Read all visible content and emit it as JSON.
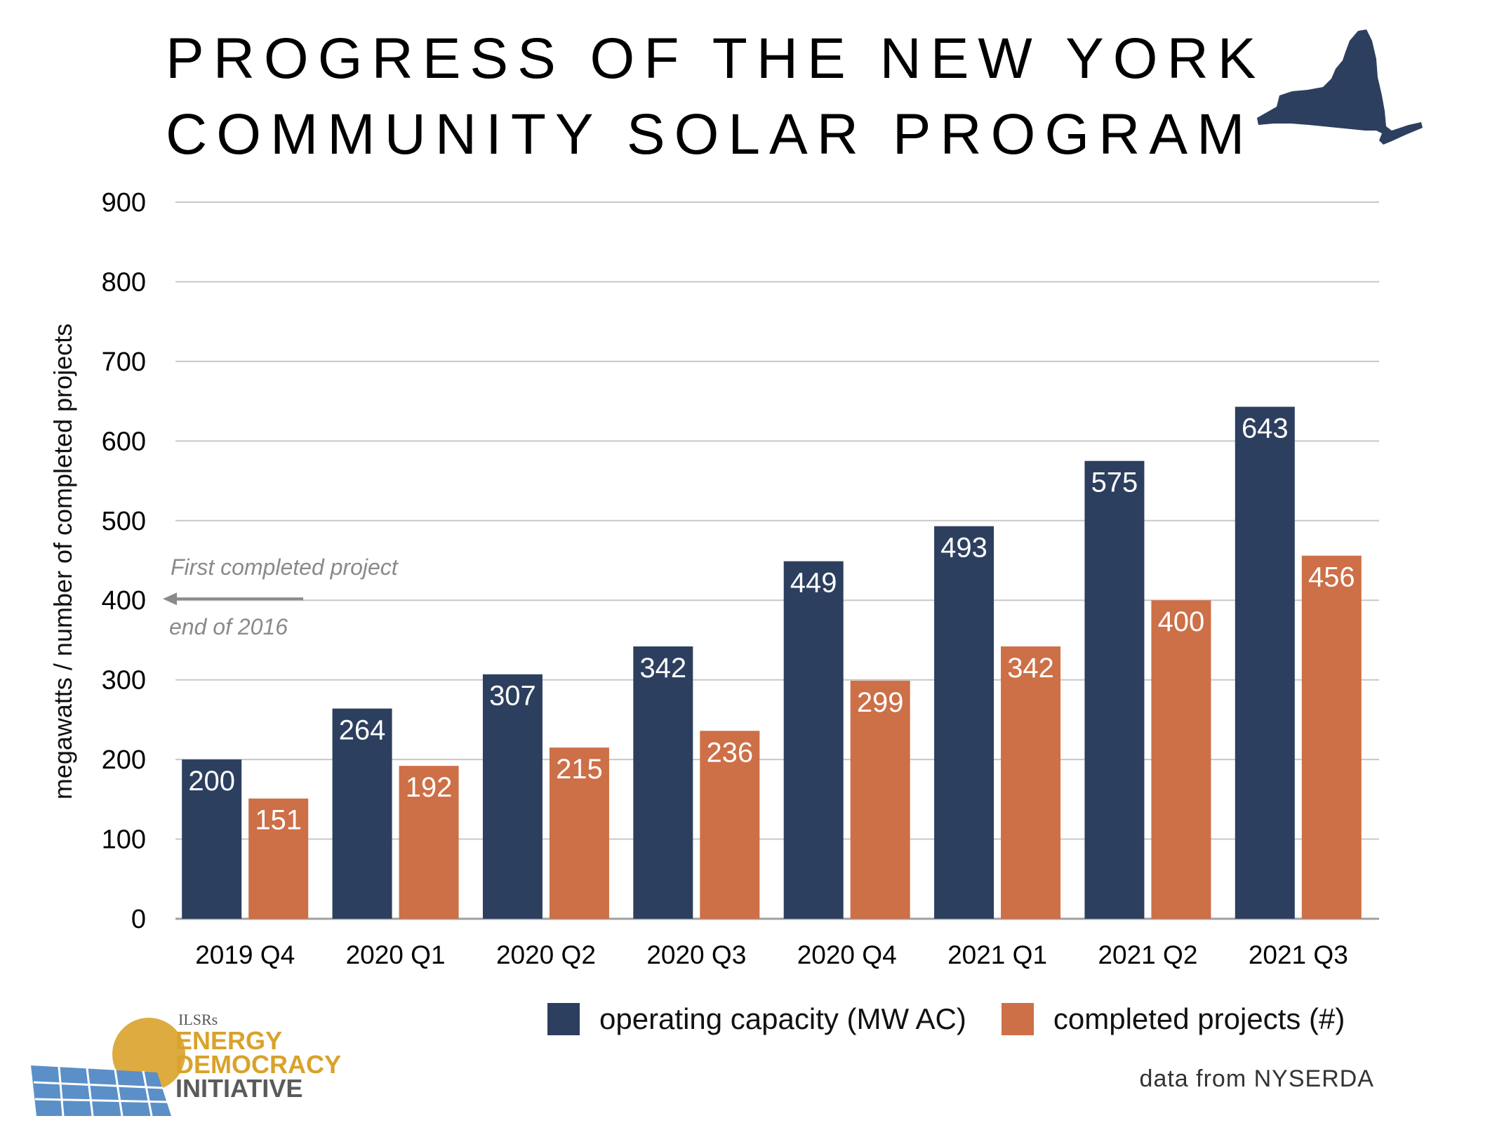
{
  "title_lines": [
    "PROGRESS OF THE NEW YORK",
    "COMMUNITY SOLAR PROGRAM"
  ],
  "colors": {
    "capacity": "#2d3f5e",
    "projects": "#cd6f47",
    "map": "#2d3f5e",
    "logo_gold": "#d9a22b",
    "logo_blue": "#5b8fc7",
    "grid": "#c8c8c8"
  },
  "annotation": {
    "line1": "First completed project",
    "line2": "end of 2016",
    "value": 400
  },
  "legend": {
    "capacity": "operating capacity (MW AC)",
    "projects": "completed projects (#)"
  },
  "source": "data from NYSERDA",
  "logo": {
    "small": "ILSRs",
    "line1": "ENERGY",
    "line2": "DEMOCRACY",
    "line3": "INITIATIVE"
  },
  "chart_data": {
    "type": "bar",
    "ylabel": "megawatts / number of completed projects",
    "xlabel": "",
    "ylim": [
      0,
      900
    ],
    "yticks": [
      0,
      100,
      200,
      300,
      400,
      500,
      600,
      700,
      800,
      900
    ],
    "grid": true,
    "legend_position": "bottom",
    "categories": [
      "2019 Q4",
      "2020 Q1",
      "2020 Q2",
      "2020 Q3",
      "2020 Q4",
      "2021 Q1",
      "2021 Q2",
      "2021 Q3"
    ],
    "series": [
      {
        "name": "operating capacity (MW AC)",
        "values": [
          200,
          264,
          307,
          342,
          449,
          493,
          575,
          643
        ]
      },
      {
        "name": "completed projects (#)",
        "values": [
          151,
          192,
          215,
          236,
          299,
          342,
          400,
          456
        ]
      }
    ]
  }
}
